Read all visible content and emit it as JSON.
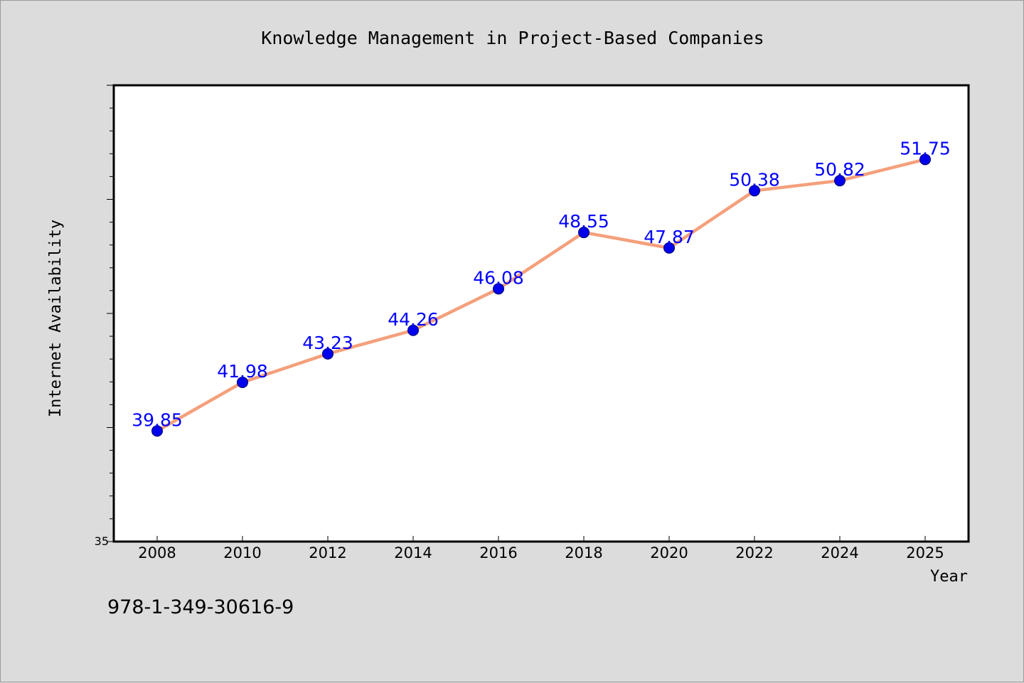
{
  "chart_data": {
    "type": "line",
    "title": "Knowledge Management in Project-Based Companies",
    "xlabel": "Year",
    "ylabel": "Internet Availability",
    "x": [
      2008,
      2010,
      2012,
      2014,
      2016,
      2018,
      2020,
      2022,
      2024,
      2025
    ],
    "x_tick_labels": [
      "2008",
      "2010",
      "2012",
      "2014",
      "2016",
      "2018",
      "2020",
      "2022",
      "2024",
      "2025"
    ],
    "values": [
      39.85,
      41.98,
      43.23,
      44.26,
      46.08,
      48.55,
      47.87,
      50.38,
      50.82,
      51.75
    ],
    "data_labels": [
      "39.85",
      "41.98",
      "43.23",
      "44.26",
      "46.08",
      "48.55",
      "47.87",
      "50.38",
      "50.82",
      "51.75"
    ],
    "ylim": [
      35,
      55
    ],
    "y_tick_labels": [
      {
        "value": 35,
        "label": "35"
      }
    ],
    "x_spacing": "categorical",
    "grid": false,
    "legend": "none",
    "colors": {
      "background": "#dcdcdc",
      "plot_background": "#ffffff",
      "line": "#f4a07c",
      "marker": "#0000ee",
      "marker_edge": "#000066",
      "data_label": "#0000ff",
      "axis": "#000000",
      "text": "#000000"
    }
  },
  "footer": {
    "isbn": "978-1-349-30616-9"
  }
}
